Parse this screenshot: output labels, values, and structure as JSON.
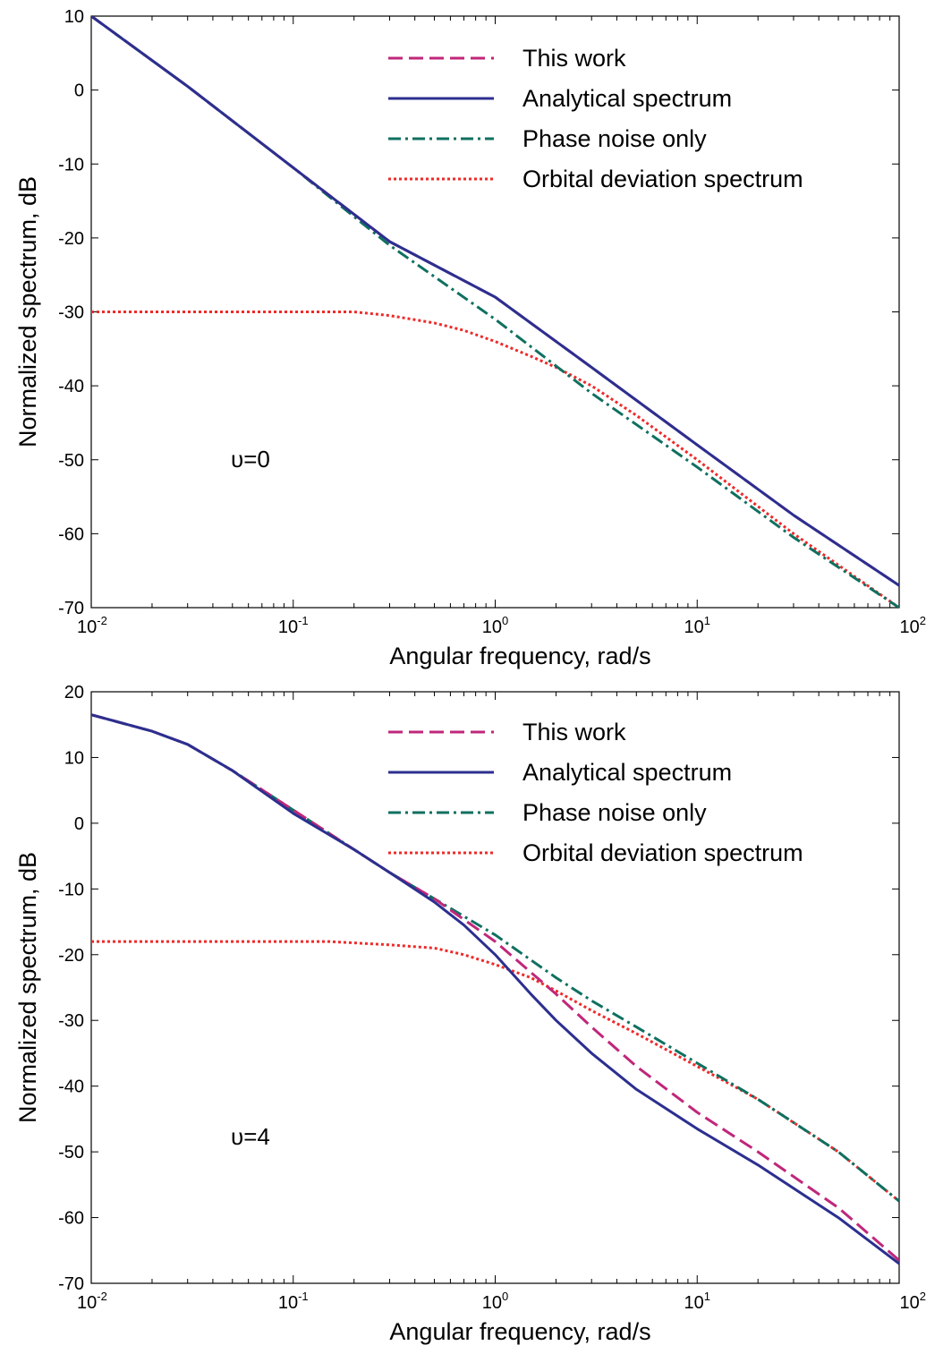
{
  "colors": {
    "this_work": "#c0277a",
    "analytical": "#2c2f8f",
    "phase_noise": "#0f7060",
    "orbital": "#ee2a2a"
  },
  "chart_data": [
    {
      "type": "line",
      "xlabel": "Angular frequency, rad/s",
      "ylabel": "Normalized spectrum, dB",
      "xscale": "log",
      "xlim": [
        0.01,
        100
      ],
      "ylim": [
        -70,
        10
      ],
      "yticks": [
        10,
        0,
        -10,
        -20,
        -30,
        -40,
        -50,
        -60,
        -70
      ],
      "xticks": [
        {
          "base": "10",
          "exp": "-2"
        },
        {
          "base": "10",
          "exp": "-1"
        },
        {
          "base": "10",
          "exp": "0"
        },
        {
          "base": "10",
          "exp": "1"
        },
        {
          "base": "10",
          "exp": "2"
        }
      ],
      "annotation": "υ=0",
      "legend_position": "top-right",
      "series": [
        {
          "name": "This work",
          "style": "dashed",
          "color": "#c0277a",
          "x": [
            0.01,
            0.03,
            0.1,
            0.3,
            1,
            3,
            10,
            30,
            100
          ],
          "y": [
            10,
            0.5,
            -10.5,
            -20.5,
            -28,
            -37.5,
            -48,
            -57.5,
            -67
          ]
        },
        {
          "name": "Analytical spectrum",
          "style": "solid",
          "color": "#2c2f8f",
          "x": [
            0.01,
            0.03,
            0.1,
            0.3,
            1,
            3,
            10,
            30,
            100
          ],
          "y": [
            10,
            0.5,
            -10.5,
            -20.5,
            -28,
            -37.5,
            -48,
            -57.5,
            -67
          ]
        },
        {
          "name": "Phase noise only",
          "style": "dashdot",
          "color": "#0f7060",
          "x": [
            0.01,
            0.03,
            0.1,
            0.3,
            1,
            3,
            10,
            30,
            100
          ],
          "y": [
            10,
            0.5,
            -10.5,
            -21,
            -31,
            -41,
            -51,
            -60.5,
            -70
          ]
        },
        {
          "name": "Orbital deviation spectrum",
          "style": "dotted",
          "color": "#ee2a2a",
          "x": [
            0.01,
            0.1,
            0.2,
            0.3,
            0.5,
            0.7,
            1,
            1.5,
            2,
            3,
            5,
            10,
            30,
            100
          ],
          "y": [
            -30,
            -30,
            -30,
            -30.5,
            -31.5,
            -32.5,
            -34,
            -36,
            -37.5,
            -40,
            -44,
            -50,
            -60,
            -70
          ]
        }
      ]
    },
    {
      "type": "line",
      "xlabel": "Angular frequency, rad/s",
      "ylabel": "Normalized spectrum, dB",
      "xscale": "log",
      "xlim": [
        0.01,
        100
      ],
      "ylim": [
        -70,
        20
      ],
      "yticks": [
        20,
        10,
        0,
        -10,
        -20,
        -30,
        -40,
        -50,
        -60,
        -70
      ],
      "xticks": [
        {
          "base": "10",
          "exp": "-2"
        },
        {
          "base": "10",
          "exp": "-1"
        },
        {
          "base": "10",
          "exp": "0"
        },
        {
          "base": "10",
          "exp": "1"
        },
        {
          "base": "10",
          "exp": "2"
        }
      ],
      "annotation": "υ=4",
      "legend_position": "top-right",
      "series": [
        {
          "name": "This work",
          "style": "dashed",
          "color": "#c0277a",
          "x": [
            0.01,
            0.02,
            0.03,
            0.05,
            0.1,
            0.2,
            0.3,
            0.5,
            1,
            2,
            3,
            5,
            10,
            20,
            50,
            100
          ],
          "y": [
            16.5,
            14,
            12,
            8,
            2,
            -4,
            -7.5,
            -11.5,
            -18,
            -26,
            -31,
            -37,
            -44,
            -50,
            -58.5,
            -66.5
          ]
        },
        {
          "name": "Analytical spectrum",
          "style": "solid",
          "color": "#2c2f8f",
          "x": [
            0.01,
            0.02,
            0.03,
            0.05,
            0.1,
            0.2,
            0.3,
            0.5,
            0.7,
            1,
            1.5,
            2,
            3,
            5,
            10,
            20,
            50,
            100
          ],
          "y": [
            16.5,
            14,
            12,
            8,
            1.5,
            -4,
            -7.5,
            -12,
            -15.5,
            -20,
            -26,
            -30,
            -35,
            -40.5,
            -46.5,
            -52,
            -60,
            -67
          ]
        },
        {
          "name": "Phase noise only",
          "style": "dashdot",
          "color": "#0f7060",
          "x": [
            0.01,
            0.02,
            0.03,
            0.05,
            0.1,
            0.2,
            0.3,
            0.5,
            1,
            2,
            3,
            5,
            10,
            20,
            50,
            100
          ],
          "y": [
            16.5,
            14,
            12,
            8,
            2,
            -4,
            -7.5,
            -11.5,
            -17,
            -23.5,
            -27,
            -31,
            -36.5,
            -42,
            -50,
            -57.5
          ]
        },
        {
          "name": "Orbital deviation spectrum",
          "style": "dotted",
          "color": "#ee2a2a",
          "x": [
            0.01,
            0.1,
            0.15,
            0.2,
            0.3,
            0.5,
            0.7,
            1,
            1.5,
            2,
            3,
            5,
            10,
            20,
            50,
            100
          ],
          "y": [
            -18,
            -18,
            -18,
            -18.2,
            -18.5,
            -19,
            -20,
            -21.5,
            -23.5,
            -25.5,
            -28.5,
            -32,
            -37,
            -42,
            -50,
            -57.5
          ]
        }
      ]
    }
  ]
}
